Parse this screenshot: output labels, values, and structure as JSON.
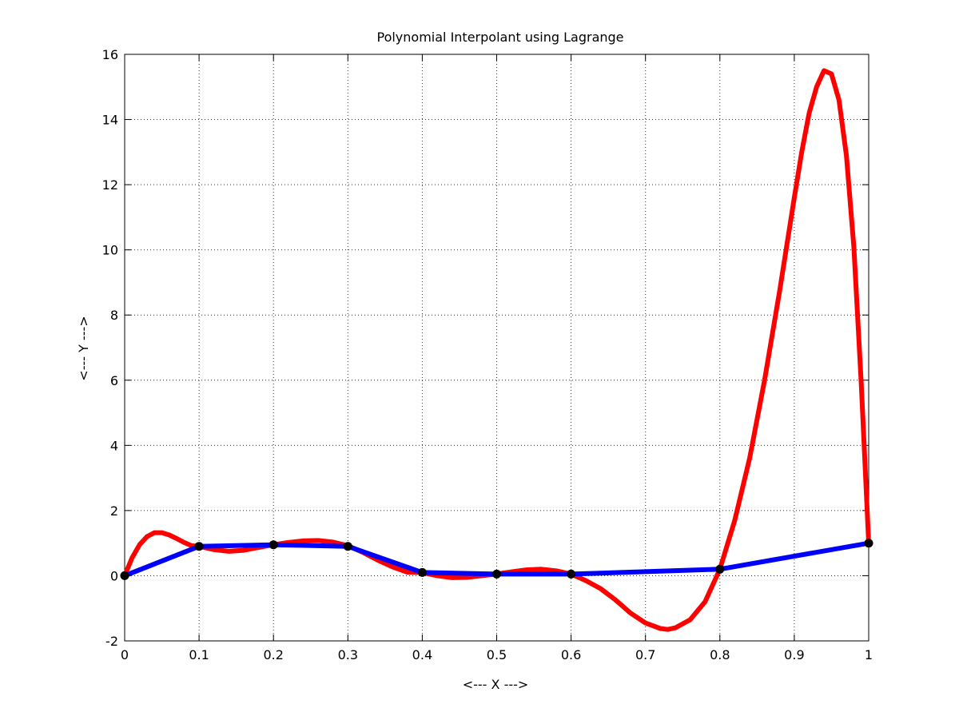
{
  "chart_data": {
    "type": "line",
    "title": "Polynomial Interpolant using Lagrange",
    "xlabel": "<--- X --->",
    "ylabel": "<--- Y --->",
    "xlim": [
      0,
      1
    ],
    "ylim": [
      -2,
      16
    ],
    "xticks": [
      0,
      0.1,
      0.2,
      0.3,
      0.4,
      0.5,
      0.6,
      0.7,
      0.8,
      0.9,
      1
    ],
    "xtick_labels": [
      "0",
      "0.1",
      "0.2",
      "0.3",
      "0.4",
      "0.5",
      "0.6",
      "0.7",
      "0.8",
      "0.9",
      "1"
    ],
    "yticks": [
      -2,
      0,
      2,
      4,
      6,
      8,
      10,
      12,
      14,
      16
    ],
    "ytick_labels": [
      "-2",
      "0",
      "2",
      "4",
      "6",
      "8",
      "10",
      "12",
      "14",
      "16"
    ],
    "grid": true,
    "series": [
      {
        "color": "#ff0000",
        "style": "line",
        "x": [
          0,
          0.01,
          0.02,
          0.03,
          0.04,
          0.05,
          0.06,
          0.07,
          0.08,
          0.09,
          0.1,
          0.12,
          0.14,
          0.16,
          0.18,
          0.2,
          0.22,
          0.24,
          0.26,
          0.28,
          0.3,
          0.32,
          0.34,
          0.36,
          0.38,
          0.4,
          0.42,
          0.44,
          0.46,
          0.48,
          0.5,
          0.52,
          0.54,
          0.56,
          0.58,
          0.6,
          0.62,
          0.64,
          0.66,
          0.68,
          0.7,
          0.72,
          0.73,
          0.74,
          0.76,
          0.78,
          0.8,
          0.82,
          0.84,
          0.86,
          0.88,
          0.9,
          0.91,
          0.92,
          0.93,
          0.94,
          0.95,
          0.96,
          0.97,
          0.98,
          0.99,
          1.0
        ],
        "y": [
          0,
          0.55,
          0.95,
          1.2,
          1.32,
          1.32,
          1.25,
          1.14,
          1.02,
          0.92,
          0.9,
          0.8,
          0.75,
          0.78,
          0.87,
          0.95,
          1.02,
          1.07,
          1.08,
          1.03,
          0.92,
          0.72,
          0.48,
          0.27,
          0.11,
          0.1,
          0.0,
          -0.06,
          -0.05,
          0.0,
          0.05,
          0.12,
          0.18,
          0.2,
          0.15,
          0.05,
          -0.15,
          -0.4,
          -0.75,
          -1.15,
          -1.45,
          -1.62,
          -1.65,
          -1.6,
          -1.35,
          -0.8,
          0.2,
          1.7,
          3.6,
          6.0,
          8.7,
          11.6,
          13.0,
          14.2,
          15.0,
          15.5,
          15.4,
          14.6,
          12.9,
          10.1,
          5.9,
          1.0
        ]
      },
      {
        "color": "#0000ff",
        "style": "line",
        "x": [
          0,
          0.1,
          0.2,
          0.3,
          0.4,
          0.5,
          0.6,
          0.8,
          1.0
        ],
        "y": [
          0,
          0.9,
          0.95,
          0.9,
          0.1,
          0.05,
          0.05,
          0.2,
          1.0
        ]
      },
      {
        "color": "#000000",
        "style": "markers",
        "x": [
          0,
          0.1,
          0.2,
          0.3,
          0.4,
          0.5,
          0.6,
          0.8,
          1.0
        ],
        "y": [
          0,
          0.9,
          0.95,
          0.9,
          0.1,
          0.05,
          0.05,
          0.2,
          1.0
        ]
      }
    ]
  }
}
